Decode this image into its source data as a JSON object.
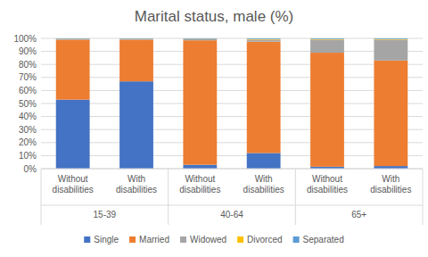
{
  "chart_data": {
    "type": "bar",
    "stacked": true,
    "title": "Marital status, male (%)",
    "groups": [
      "15-39",
      "40-64",
      "65+"
    ],
    "categories": [
      "Without disabilities",
      "With disabilities",
      "Without disabilities",
      "With disabilities",
      "Without disabilities",
      "With disabilities"
    ],
    "series": [
      {
        "name": "Single",
        "color": "#4472c4",
        "values": [
          53,
          67,
          3,
          12,
          1.5,
          2
        ]
      },
      {
        "name": "Married",
        "color": "#ed7d31",
        "values": [
          46,
          32,
          95.5,
          85.5,
          87.5,
          81
        ]
      },
      {
        "name": "Widowed",
        "color": "#a5a5a5",
        "values": [
          0.3,
          0.3,
          0.8,
          1.5,
          10,
          16
        ]
      },
      {
        "name": "Divorced",
        "color": "#ffc000",
        "values": [
          0.3,
          0.3,
          0.3,
          0.5,
          0.5,
          0.5
        ]
      },
      {
        "name": "Separated",
        "color": "#5b9bd5",
        "values": [
          0.4,
          0.4,
          0.4,
          0.5,
          0.5,
          0.5
        ]
      }
    ],
    "ylim": [
      0,
      100
    ],
    "yticks": [
      {
        "value": 0,
        "label": "0%"
      },
      {
        "value": 10,
        "label": "10%"
      },
      {
        "value": 20,
        "label": "20%"
      },
      {
        "value": 30,
        "label": "30%"
      },
      {
        "value": 40,
        "label": "40%"
      },
      {
        "value": 50,
        "label": "50%"
      },
      {
        "value": 60,
        "label": "60%"
      },
      {
        "value": 70,
        "label": "70%"
      },
      {
        "value": 80,
        "label": "80%"
      },
      {
        "value": 90,
        "label": "90%"
      },
      {
        "value": 100,
        "label": "100%"
      }
    ],
    "grid": true,
    "legend": "bottom"
  }
}
